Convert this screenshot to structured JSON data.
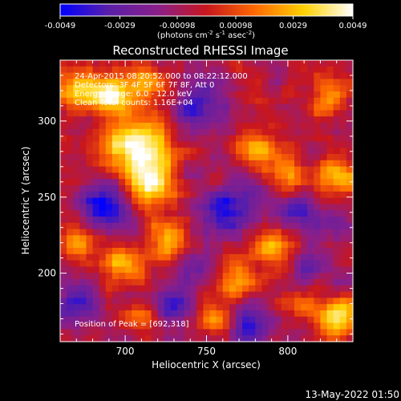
{
  "colorbar": {
    "ticks": [
      "-0.0049",
      "-0.0029",
      "-0.00098",
      "0.00098",
      "0.0029",
      "0.0049"
    ],
    "units_main": "(photons cm",
    "units_exp1": "-2",
    "units_mid": " s",
    "units_exp2": "-1",
    "units_end": " asec",
    "units_exp3": "-2",
    "units_close": ")"
  },
  "annotations": {
    "time_range": "24-Apr-2015 08:20:52.000 to 08:22:12.000",
    "detectors": "Detectors: 3F 4F 5F 6F 7F 8F, Att 0",
    "energy": "Energy Range: 6.0 - 12.0 keV",
    "method": "Clean   Total counts: 1.16E+04",
    "peak": "Position of Peak = [692,318]"
  },
  "footer": {
    "date": "13-May-2022 01:50"
  },
  "chart_data": {
    "type": "heatmap",
    "title": "Reconstructed RHESSI Image",
    "xlabel": "Heliocentric X (arcsec)",
    "ylabel": "Heliocentric Y (arcsec)",
    "xlim": [
      660,
      840
    ],
    "ylim": [
      155,
      340
    ],
    "xticks": [
      700,
      750,
      800
    ],
    "yticks": [
      200,
      250,
      300
    ],
    "colorbar_range": [
      -0.0049,
      0.0049
    ],
    "colormap": [
      "#0000ff",
      "#5a1fa8",
      "#8a1f8a",
      "#c8161e",
      "#ff6a00",
      "#ffd200",
      "#ffffff"
    ],
    "grid": {
      "nx": 45,
      "ny": 45
    },
    "sources": [
      {
        "x": 692,
        "y": 318,
        "sigma": 8,
        "amp": 0.0049
      },
      {
        "x": 705,
        "y": 285,
        "sigma": 14,
        "amp": 0.0049
      },
      {
        "x": 715,
        "y": 260,
        "sigma": 12,
        "amp": 0.0046
      },
      {
        "x": 672,
        "y": 320,
        "sigma": 9,
        "amp": 0.0038
      },
      {
        "x": 715,
        "y": 325,
        "sigma": 9,
        "amp": 0.0033
      },
      {
        "x": 728,
        "y": 222,
        "sigma": 9,
        "amp": 0.0036
      },
      {
        "x": 700,
        "y": 205,
        "sigma": 10,
        "amp": 0.0031
      },
      {
        "x": 780,
        "y": 280,
        "sigma": 9,
        "amp": 0.0034
      },
      {
        "x": 800,
        "y": 265,
        "sigma": 8,
        "amp": 0.003
      },
      {
        "x": 830,
        "y": 265,
        "sigma": 9,
        "amp": 0.0035
      },
      {
        "x": 825,
        "y": 315,
        "sigma": 9,
        "amp": 0.0032
      },
      {
        "x": 790,
        "y": 215,
        "sigma": 10,
        "amp": 0.0034
      },
      {
        "x": 770,
        "y": 195,
        "sigma": 8,
        "amp": 0.003
      },
      {
        "x": 832,
        "y": 170,
        "sigma": 9,
        "amp": 0.0046
      },
      {
        "x": 752,
        "y": 172,
        "sigma": 7,
        "amp": 0.0026
      },
      {
        "x": 668,
        "y": 222,
        "sigma": 8,
        "amp": 0.0028
      },
      {
        "x": 708,
        "y": 170,
        "sigma": 7,
        "amp": 0.0022
      },
      {
        "x": 808,
        "y": 178,
        "sigma": 7,
        "amp": 0.0024
      },
      {
        "x": 755,
        "y": 258,
        "sigma": 6,
        "amp": 0.002
      },
      {
        "x": 688,
        "y": 245,
        "sigma": 11,
        "amp": -0.0042
      },
      {
        "x": 762,
        "y": 245,
        "sigma": 13,
        "amp": -0.0036
      },
      {
        "x": 745,
        "y": 310,
        "sigma": 12,
        "amp": -0.003
      },
      {
        "x": 668,
        "y": 180,
        "sigma": 10,
        "amp": -0.003
      },
      {
        "x": 730,
        "y": 180,
        "sigma": 9,
        "amp": -0.0032
      },
      {
        "x": 805,
        "y": 240,
        "sigma": 9,
        "amp": -0.003
      },
      {
        "x": 815,
        "y": 205,
        "sigma": 8,
        "amp": -0.0025
      },
      {
        "x": 780,
        "y": 165,
        "sigma": 9,
        "amp": -0.003
      },
      {
        "x": 830,
        "y": 235,
        "sigma": 8,
        "amp": -0.0022
      },
      {
        "x": 742,
        "y": 205,
        "sigma": 7,
        "amp": -0.0025
      }
    ],
    "noise": 0.001
  }
}
